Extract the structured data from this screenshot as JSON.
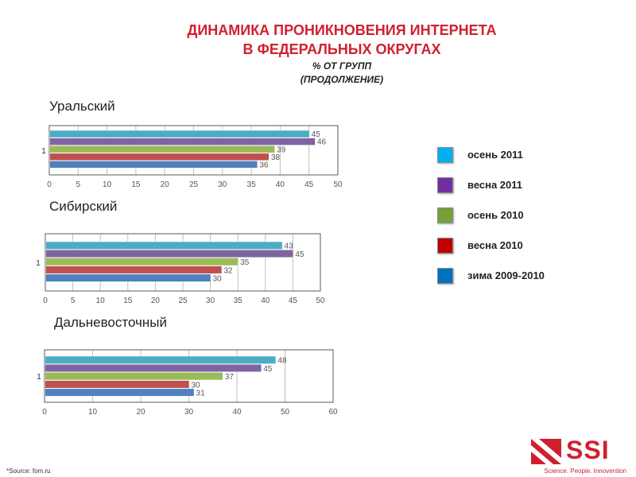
{
  "header": {
    "title_line1": "ДИНАМИКА ПРОНИКНОВЕНИЯ ИНТЕРНЕТА",
    "title_line2": "В ФЕДЕРАЛЬНЫХ ОКРУГАХ",
    "subtitle_line1": "% ОТ ГРУПП",
    "subtitle_line2": "(ПРОДОЛЖЕНИЕ)"
  },
  "colors": {
    "title": "#d0202e",
    "series": [
      "#4bacc6",
      "#8064a2",
      "#9bbb59",
      "#c0504d",
      "#4f81bd"
    ],
    "legend": [
      "#00b0f0",
      "#7030a0",
      "#77a136",
      "#c00000",
      "#0070c0"
    ]
  },
  "legend": {
    "items": [
      {
        "label": "осень 2011"
      },
      {
        "label": "весна 2011"
      },
      {
        "label": "осень 2010"
      },
      {
        "label": "весна 2010"
      },
      {
        "label": "зима 2009-2010"
      }
    ]
  },
  "chart_data": [
    {
      "type": "bar",
      "orientation": "horizontal",
      "title": "Уральский",
      "categories": [
        "1"
      ],
      "series": [
        {
          "name": "осень 2011",
          "values": [
            45
          ]
        },
        {
          "name": "весна 2011",
          "values": [
            46
          ]
        },
        {
          "name": "осень 2010",
          "values": [
            39
          ]
        },
        {
          "name": "весна 2010",
          "values": [
            38
          ]
        },
        {
          "name": "зима 2009-2010",
          "values": [
            36
          ]
        }
      ],
      "xlim": [
        0,
        50
      ],
      "xticks": [
        "0",
        "5",
        "10",
        "15",
        "20",
        "25",
        "30",
        "35",
        "40",
        "45",
        "50"
      ],
      "grid": true
    },
    {
      "type": "bar",
      "orientation": "horizontal",
      "title": "Сибирский",
      "categories": [
        "1"
      ],
      "series": [
        {
          "name": "осень 2011",
          "values": [
            43
          ]
        },
        {
          "name": "весна 2011",
          "values": [
            45
          ]
        },
        {
          "name": "осень 2010",
          "values": [
            35
          ]
        },
        {
          "name": "весна 2010",
          "values": [
            32
          ]
        },
        {
          "name": "зима 2009-2010",
          "values": [
            30
          ]
        }
      ],
      "xlim": [
        0,
        50
      ],
      "xticks": [
        "0",
        "5",
        "10",
        "15",
        "20",
        "25",
        "30",
        "35",
        "40",
        "45",
        "50"
      ],
      "grid": true
    },
    {
      "type": "bar",
      "orientation": "horizontal",
      "title": "Дальневосточный",
      "categories": [
        "1"
      ],
      "series": [
        {
          "name": "осень 2011",
          "values": [
            48
          ]
        },
        {
          "name": "весна 2011",
          "values": [
            45
          ]
        },
        {
          "name": "осень 2010",
          "values": [
            37
          ]
        },
        {
          "name": "весна 2010",
          "values": [
            30
          ]
        },
        {
          "name": "зима 2009-2010",
          "values": [
            31
          ]
        }
      ],
      "xlim": [
        0,
        60
      ],
      "xticks": [
        "0",
        "10",
        "20",
        "30",
        "40",
        "50",
        "60"
      ],
      "grid": true
    }
  ],
  "footer": {
    "source": "*Source: fom.ru",
    "logo_text": "SSI",
    "logo_tagline": "Science. People. Innovention"
  }
}
